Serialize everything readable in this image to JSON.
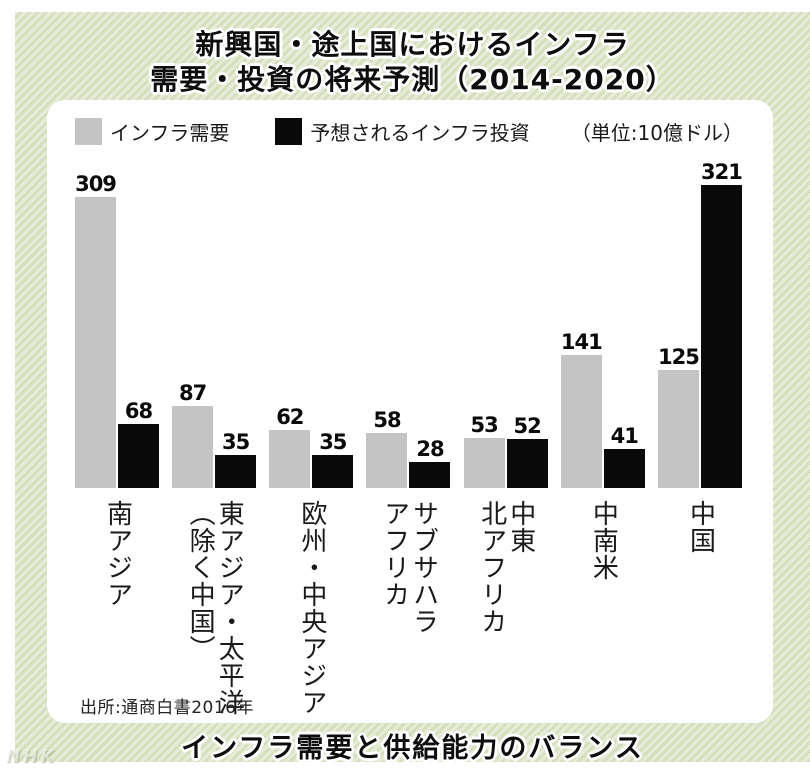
{
  "title": {
    "line1": "新興国・途上国におけるインフラ",
    "line2": "需要・投資の将来予測（2014-2020）"
  },
  "legend": {
    "demand": "インフラ需要",
    "investment": "予想されるインフラ投資",
    "unit": "（単位:10億ドル）"
  },
  "chart_data": {
    "type": "bar",
    "title": "新興国・途上国におけるインフラ需要・投資の将来予測（2014-2020）",
    "unit": "10億ドル",
    "categories": [
      "南アジア",
      "東アジア・太平洋\n（除く中国）",
      "欧州・中央アジア",
      "サブサハラ\nアフリカ",
      "中東\n北アフリカ",
      "中南米",
      "中国"
    ],
    "series": [
      {
        "name": "インフラ需要",
        "color": "#c4c4c4",
        "values": [
          309,
          87,
          62,
          58,
          53,
          141,
          125
        ]
      },
      {
        "name": "予想されるインフラ投資",
        "color": "#0a0a0a",
        "values": [
          68,
          35,
          35,
          28,
          52,
          41,
          321
        ]
      }
    ],
    "ylim": [
      0,
      330
    ],
    "grid": false,
    "legend_position": "top",
    "value_labels": true,
    "category_label_orientation": "vertical"
  },
  "source": "出所:通商白書2016年",
  "footer": "インフラ需要と供給能力のバランス",
  "watermark": "NHK",
  "colors": {
    "bar_demand": "#c4c4c4",
    "bar_investment": "#0a0a0a",
    "stripe_light": "#e7ecd9",
    "stripe_dark": "#d6dfbd",
    "panel": "#ffffff",
    "text": "#111111"
  }
}
